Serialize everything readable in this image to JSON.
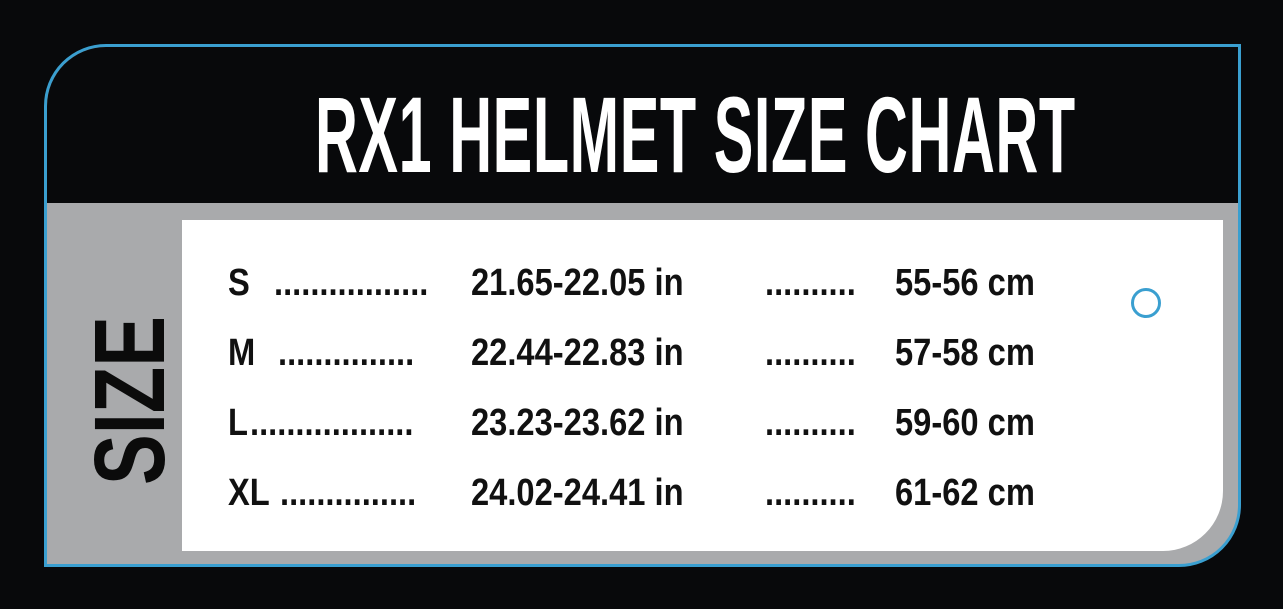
{
  "title": "RX1 HELMET SIZE CHART",
  "side_label": "SIZE",
  "colors": {
    "accent": "#3a9fd0",
    "background": "#08090b",
    "band": "#a9aaac",
    "panel": "#ffffff"
  },
  "rows": [
    {
      "size": "S",
      "leader1": ".................",
      "inches": "21.65-22.05 in",
      "leader2": "..........",
      "cm": "55-56 cm"
    },
    {
      "size": "M",
      "leader1": "...............",
      "inches": "22.44-22.83 in",
      "leader2": "..........",
      "cm": "57-58 cm"
    },
    {
      "size": "L",
      "leader1": "..................",
      "inches": "23.23-23.62 in",
      "leader2": "..........",
      "cm": "59-60 cm"
    },
    {
      "size": "XL",
      "leader1": "...............",
      "inches": "24.02-24.41 in",
      "leader2": "..........",
      "cm": "61-62 cm"
    }
  ],
  "decoration_icon": "circle-outline-icon"
}
